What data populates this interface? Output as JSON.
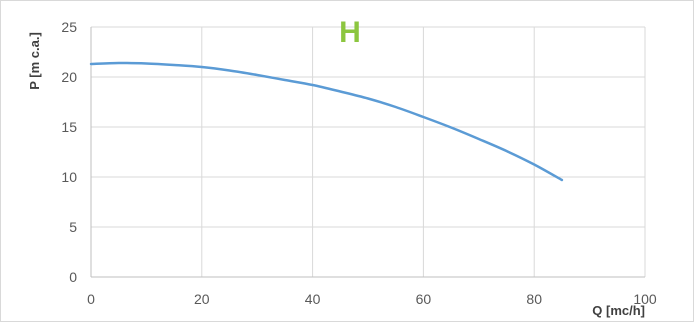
{
  "chart_data": {
    "type": "line",
    "title": "H",
    "xlabel": "Q [mc/h]",
    "ylabel": "P [m c.a.]",
    "xlim": [
      0,
      100
    ],
    "ylim": [
      0,
      25
    ],
    "x_ticks": [
      0,
      20,
      40,
      60,
      80,
      100
    ],
    "y_ticks": [
      0,
      5,
      10,
      15,
      20,
      25
    ],
    "grid": "horizontal and vertical",
    "legend": "none",
    "colors": {
      "title": "#8cc63f",
      "series": "#5b9bd5",
      "grid": "#d9d9d9",
      "axis": "#bfbfbf"
    },
    "series": [
      {
        "x": [
          0,
          5,
          10,
          15,
          20,
          25,
          30,
          35,
          40,
          45,
          50,
          55,
          60,
          65,
          70,
          75,
          80,
          85
        ],
        "values": [
          21.3,
          21.4,
          21.35,
          21.2,
          21.0,
          20.65,
          20.2,
          19.7,
          19.2,
          18.55,
          17.85,
          17.0,
          16.0,
          14.95,
          13.8,
          12.6,
          11.25,
          9.7
        ]
      }
    ]
  }
}
